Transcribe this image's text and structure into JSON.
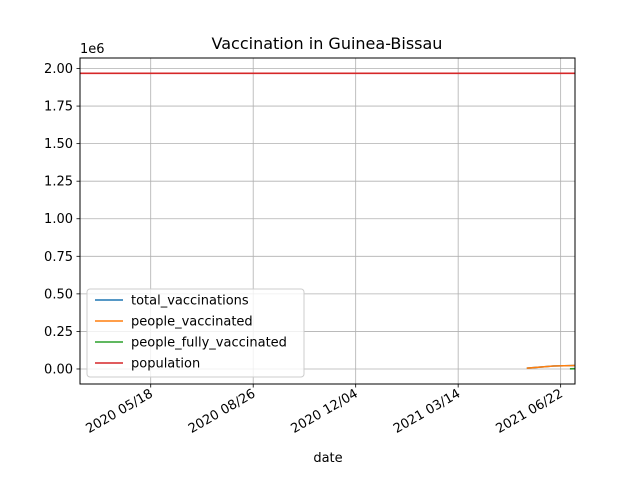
{
  "chart_data": {
    "type": "line",
    "title": "Vaccination in Guinea-Bissau",
    "xlabel": "date",
    "ylabel": "",
    "y_offset_label": "1e6",
    "y_ticks": [
      0.0,
      0.25,
      0.5,
      0.75,
      1.0,
      1.25,
      1.5,
      1.75,
      2.0
    ],
    "y_tick_labels": [
      "0.00",
      "0.25",
      "0.50",
      "0.75",
      "1.00",
      "1.25",
      "1.50",
      "1.75",
      "2.00"
    ],
    "x_ticks": [
      "2020-05-18",
      "2020-08-26",
      "2020-12-04",
      "2021-03-14",
      "2021-06-22"
    ],
    "x_tick_labels": [
      "2020 05/18",
      "2020 08/26",
      "2020 12/04",
      "2021 03/14",
      "2021 06/22"
    ],
    "xlim": [
      "2020-03-10",
      "2021-07-06"
    ],
    "ylim": [
      -0.1,
      2.07
    ],
    "grid": true,
    "legend_position": "lower-left",
    "series": [
      {
        "name": "total_vaccinations",
        "color": "#1f77b4",
        "x": [
          "2021-05-20",
          "2021-06-15",
          "2021-07-06"
        ],
        "y": [
          0.005,
          0.02,
          0.023
        ]
      },
      {
        "name": "people_vaccinated",
        "color": "#ff7f0e",
        "x": [
          "2021-05-20",
          "2021-06-15",
          "2021-07-06"
        ],
        "y": [
          0.005,
          0.02,
          0.023
        ]
      },
      {
        "name": "people_fully_vaccinated",
        "color": "#2ca02c",
        "x": [
          "2021-07-01",
          "2021-07-06"
        ],
        "y": [
          0.001,
          0.002
        ]
      },
      {
        "name": "population",
        "color": "#d62728",
        "x": [
          "2020-03-10",
          "2021-07-06"
        ],
        "y": [
          1.968,
          1.968
        ]
      }
    ]
  }
}
